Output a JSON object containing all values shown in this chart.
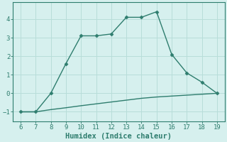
{
  "xlabel": "Humidex (Indice chaleur)",
  "line1_x": [
    6,
    7,
    8,
    9,
    10,
    11,
    12,
    13,
    14,
    15,
    16,
    17,
    18,
    19
  ],
  "line1_y": [
    -1,
    -1,
    0,
    1.6,
    3.1,
    3.1,
    3.2,
    4.1,
    4.1,
    4.4,
    2.1,
    1.1,
    0.6,
    0.0
  ],
  "line2_x": [
    6,
    7,
    8,
    9,
    10,
    11,
    12,
    13,
    14,
    15,
    16,
    17,
    18,
    19
  ],
  "line2_y": [
    -1.0,
    -1.0,
    -0.88,
    -0.78,
    -0.67,
    -0.57,
    -0.47,
    -0.37,
    -0.27,
    -0.2,
    -0.15,
    -0.1,
    -0.05,
    0.0
  ],
  "color": "#2e7d6e",
  "bg_color": "#d6f0ee",
  "grid_color": "#b8ddd9",
  "xlim": [
    5.5,
    19.5
  ],
  "ylim": [
    -1.5,
    4.9
  ],
  "yticks": [
    -1,
    0,
    1,
    2,
    3,
    4
  ],
  "xticks": [
    6,
    7,
    8,
    9,
    10,
    11,
    12,
    13,
    14,
    15,
    16,
    17,
    18,
    19
  ],
  "marker": "D",
  "markersize": 2.5,
  "linewidth": 1.0,
  "xlabel_fontsize": 7.5,
  "tick_fontsize": 6.5
}
